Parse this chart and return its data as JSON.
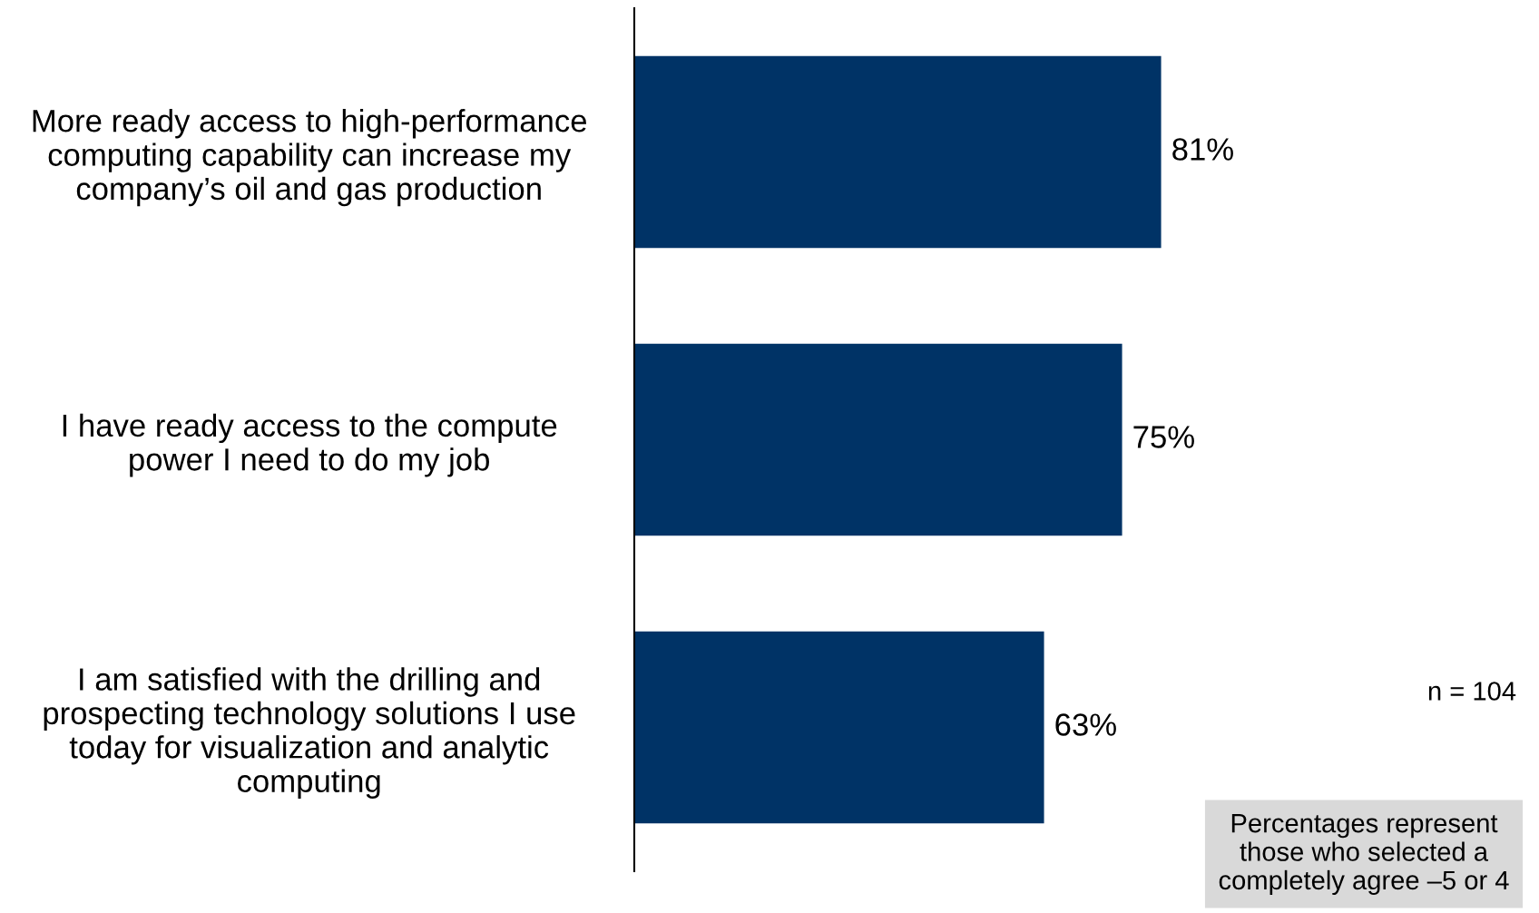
{
  "chart_data": {
    "type": "bar",
    "orientation": "horizontal",
    "categories": [
      "More ready access to high-performance\ncomputing capability can increase my\ncompany’s oil and gas production",
      "I have ready access to the compute\npower I need to do my job",
      "I am satisfied with the drilling and\nprospecting technology solutions I use\ntoday for visualization and analytic\ncomputing"
    ],
    "values": [
      81,
      75,
      63
    ],
    "value_labels": [
      "81%",
      "75%",
      "63%"
    ],
    "color": "#003366",
    "grid": false,
    "legend": false,
    "tick_labels": "y",
    "annotations": [
      "n = 104",
      "Percentages represent\nthose who selected a\ncompletely agree –5 or 4"
    ]
  }
}
